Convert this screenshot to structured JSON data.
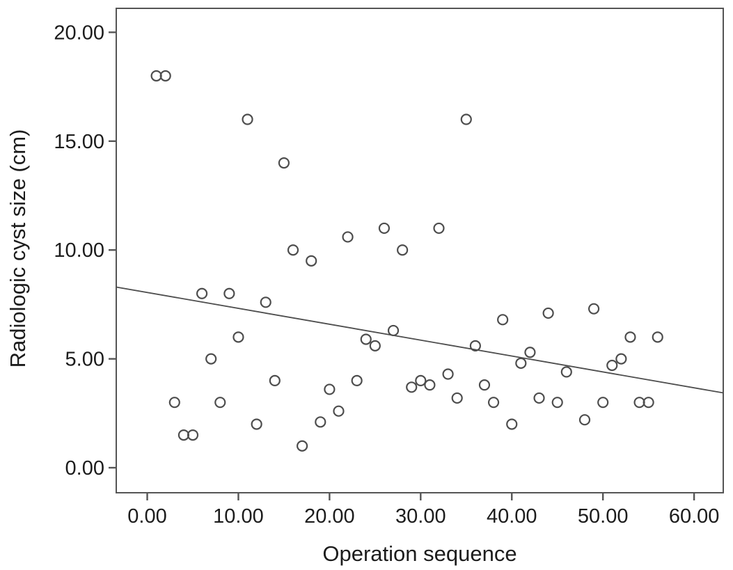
{
  "chart_data": {
    "type": "scatter",
    "title": "",
    "xlabel": "Operation sequence",
    "ylabel": "Radiologic cyst size (cm)",
    "xlim": [
      -3.4,
      63.2
    ],
    "ylim": [
      -1.15,
      21.1
    ],
    "grid": false,
    "legend": null,
    "x_ticks": {
      "values": [
        0,
        10,
        20,
        30,
        40,
        50,
        60
      ],
      "labels": [
        "0.00",
        "10.00",
        "20.00",
        "30.00",
        "40.00",
        "50.00",
        "60.00"
      ]
    },
    "y_ticks": {
      "values": [
        0,
        5,
        10,
        15,
        20
      ],
      "labels": [
        "0.00",
        "5.00",
        "10.00",
        "15.00",
        "20.00"
      ]
    },
    "points": [
      [
        1,
        18
      ],
      [
        2,
        18
      ],
      [
        3,
        3
      ],
      [
        4,
        1.5
      ],
      [
        5,
        1.5
      ],
      [
        6,
        8
      ],
      [
        7,
        5
      ],
      [
        8,
        3
      ],
      [
        9,
        8
      ],
      [
        10,
        6
      ],
      [
        11,
        16
      ],
      [
        12,
        2
      ],
      [
        13,
        7.6
      ],
      [
        14,
        4
      ],
      [
        15,
        14
      ],
      [
        16,
        10
      ],
      [
        17,
        1
      ],
      [
        18,
        9.5
      ],
      [
        19,
        2.1
      ],
      [
        20,
        3.6
      ],
      [
        21,
        2.6
      ],
      [
        22,
        10.6
      ],
      [
        23,
        4
      ],
      [
        24,
        5.9
      ],
      [
        25,
        5.6
      ],
      [
        26,
        11
      ],
      [
        27,
        6.3
      ],
      [
        28,
        10
      ],
      [
        29,
        3.7
      ],
      [
        30,
        4
      ],
      [
        31,
        3.8
      ],
      [
        32,
        11
      ],
      [
        33,
        4.3
      ],
      [
        34,
        3.2
      ],
      [
        35,
        16
      ],
      [
        36,
        5.6
      ],
      [
        37,
        3.8
      ],
      [
        38,
        3
      ],
      [
        39,
        6.8
      ],
      [
        40,
        2
      ],
      [
        41,
        4.8
      ],
      [
        42,
        5.3
      ],
      [
        43,
        3.2
      ],
      [
        44,
        7.1
      ],
      [
        45,
        3
      ],
      [
        46,
        4.4
      ],
      [
        48,
        2.2
      ],
      [
        49,
        7.3
      ],
      [
        50,
        3
      ],
      [
        51,
        4.7
      ],
      [
        52,
        5
      ],
      [
        53,
        6
      ],
      [
        54,
        3
      ],
      [
        55,
        3
      ],
      [
        56,
        6
      ]
    ],
    "trendline": {
      "slope": -0.073,
      "intercept": 8.05
    },
    "marker": {
      "shape": "open-circle",
      "radius": 7,
      "stroke_width": 2.2
    },
    "colors": {
      "background": "#ffffff",
      "frame": "#555555",
      "tick": "#555555",
      "marker": "#4d4d4d",
      "trendline": "#4d4d4d",
      "text": "#1c1c1c"
    }
  }
}
